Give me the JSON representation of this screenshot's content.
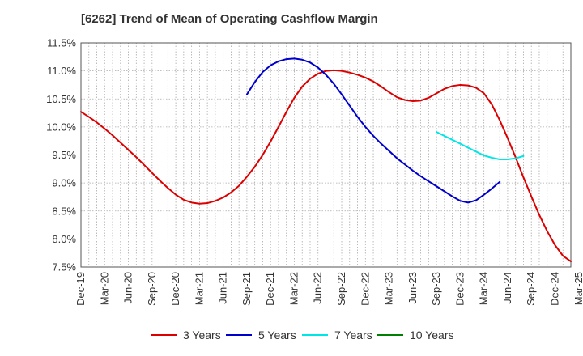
{
  "chart_data": {
    "type": "line",
    "title": "[6262]  Trend of Mean of Operating Cashflow Margin",
    "xlabel": "",
    "ylabel": "",
    "ylim": [
      7.5,
      11.5
    ],
    "grid": true,
    "legend_position": "bottom",
    "y_ticks": [
      {
        "value": 11.5,
        "label": "11.5%"
      },
      {
        "value": 11.0,
        "label": "11.0%"
      },
      {
        "value": 10.5,
        "label": "10.5%"
      },
      {
        "value": 10.0,
        "label": "10.0%"
      },
      {
        "value": 9.5,
        "label": "9.5%"
      },
      {
        "value": 9.0,
        "label": "9.0%"
      },
      {
        "value": 8.5,
        "label": "8.5%"
      },
      {
        "value": 8.0,
        "label": "8.0%"
      },
      {
        "value": 7.5,
        "label": "7.5%"
      }
    ],
    "x_ticks": [
      "Dec-19",
      "Mar-20",
      "Jun-20",
      "Sep-20",
      "Dec-20",
      "Mar-21",
      "Jun-21",
      "Sep-21",
      "Dec-21",
      "Mar-22",
      "Jun-22",
      "Sep-22",
      "Dec-22",
      "Mar-23",
      "Jun-23",
      "Sep-23",
      "Dec-23",
      "Mar-24",
      "Jun-24",
      "Sep-24",
      "Dec-24",
      "Mar-25"
    ],
    "x_quarter_count": 63,
    "series": [
      {
        "name": "3 Years",
        "color": "#dd0000",
        "start_quarter": 0,
        "values": [
          10.27,
          10.18,
          10.08,
          9.97,
          9.85,
          9.72,
          9.59,
          9.46,
          9.32,
          9.18,
          9.04,
          8.91,
          8.79,
          8.7,
          8.65,
          8.63,
          8.64,
          8.68,
          8.74,
          8.83,
          8.95,
          9.11,
          9.29,
          9.5,
          9.74,
          10.0,
          10.27,
          10.52,
          10.72,
          10.86,
          10.95,
          11.0,
          11.01,
          11.0,
          10.97,
          10.93,
          10.88,
          10.81,
          10.72,
          10.62,
          10.53,
          10.48,
          10.46,
          10.47,
          10.52,
          10.6,
          10.68,
          10.73,
          10.75,
          10.74,
          10.7,
          10.6,
          10.4,
          10.12,
          9.8,
          9.46,
          9.1,
          8.76,
          8.43,
          8.14,
          7.89,
          7.7,
          7.6
        ]
      },
      {
        "name": "5 Years",
        "color": "#0000cc",
        "start_quarter": 21,
        "values": [
          10.58,
          10.8,
          10.98,
          11.1,
          11.17,
          11.21,
          11.22,
          11.2,
          11.15,
          11.06,
          10.93,
          10.77,
          10.58,
          10.38,
          10.18,
          10.0,
          9.84,
          9.7,
          9.57,
          9.44,
          9.33,
          9.22,
          9.12,
          9.03,
          8.94,
          8.85,
          8.76,
          8.68,
          8.65,
          8.69,
          8.79,
          8.9,
          9.02
        ]
      },
      {
        "name": "7 Years",
        "color": "#00e5e5",
        "start_quarter": 45,
        "values": [
          9.91,
          9.84,
          9.77,
          9.7,
          9.63,
          9.56,
          9.49,
          9.45,
          9.42,
          9.42,
          9.44,
          9.48
        ]
      },
      {
        "name": "10 Years",
        "color": "#008000",
        "start_quarter": 0,
        "values": []
      }
    ]
  }
}
